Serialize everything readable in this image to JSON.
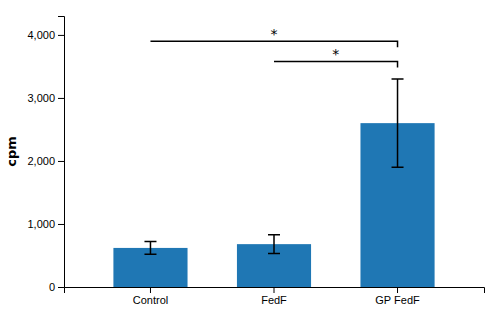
{
  "chart_data": {
    "type": "bar",
    "categories": [
      "Control",
      "FedF",
      "GP FedF"
    ],
    "values": [
      620,
      680,
      2600
    ],
    "errors": [
      100,
      150,
      700
    ],
    "ylabel": "cpm",
    "ylim": [
      0,
      4300
    ],
    "yticks": [
      0,
      {
        "value": 1000,
        "label": "1,000"
      },
      {
        "value": 2000,
        "label": "2,000"
      },
      {
        "value": 3000,
        "label": "3,000"
      },
      {
        "value": 4000,
        "label": "4,000"
      }
    ],
    "grid": false,
    "annotations": [
      {
        "text": "*",
        "x1": "Control",
        "x2": "GP FedF",
        "y": 3900
      },
      {
        "text": "*",
        "x1": "FedF",
        "x2": "GP FedF",
        "y": 3580
      }
    ]
  }
}
